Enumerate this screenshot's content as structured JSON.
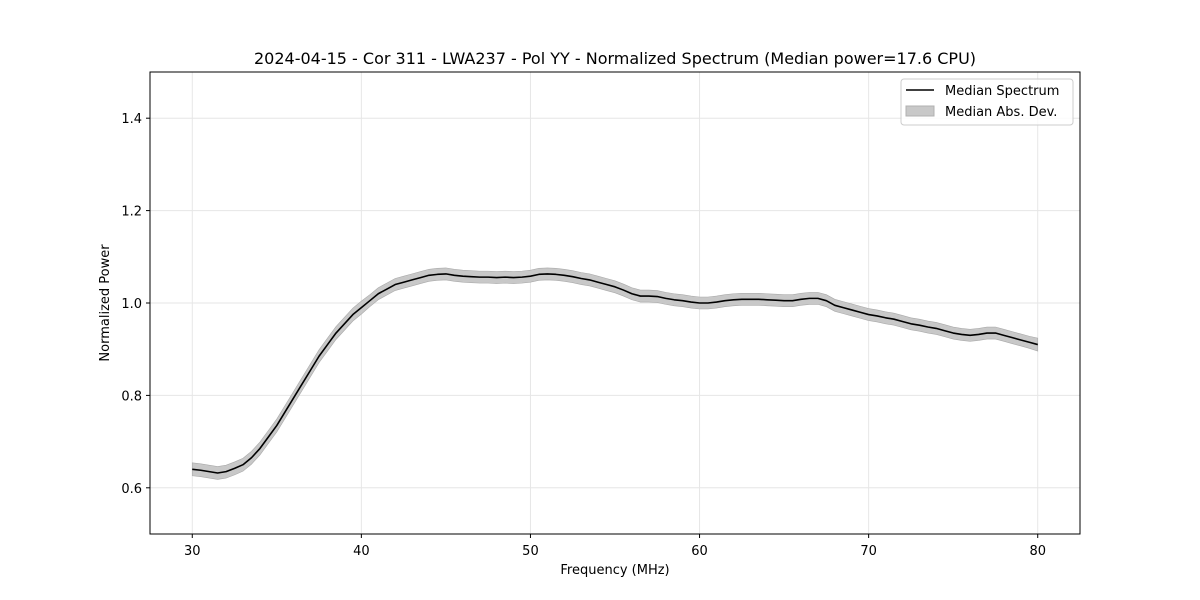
{
  "chart_data": {
    "type": "line",
    "title": "2024-04-15 - Cor 311 - LWA237 - Pol YY - Normalized Spectrum (Median power=17.6 CPU)",
    "xlabel": "Frequency (MHz)",
    "ylabel": "Normalized Power",
    "xlim": [
      27.5,
      82.5
    ],
    "ylim": [
      0.5,
      1.5
    ],
    "xticks": [
      30,
      40,
      50,
      60,
      70,
      80
    ],
    "yticks": [
      0.6,
      0.8,
      1.0,
      1.2,
      1.4
    ],
    "xtick_labels": [
      "30",
      "40",
      "50",
      "60",
      "70",
      "80"
    ],
    "ytick_labels": [
      "0.6",
      "0.8",
      "1.0",
      "1.2",
      "1.4"
    ],
    "grid": true,
    "legend_position": "top-right",
    "series": [
      {
        "name": "Median Spectrum",
        "color": "#000000",
        "x": [
          30,
          30.5,
          31,
          31.5,
          32,
          32.5,
          33,
          33.5,
          34,
          34.5,
          35,
          35.5,
          36,
          36.5,
          37,
          37.5,
          38,
          38.5,
          39,
          39.5,
          40,
          40.5,
          41,
          41.5,
          42,
          42.5,
          43,
          43.5,
          44,
          44.5,
          45,
          45.5,
          46,
          46.5,
          47,
          47.5,
          48,
          48.5,
          49,
          49.5,
          50,
          50.5,
          51,
          51.5,
          52,
          52.5,
          53,
          53.5,
          54,
          54.5,
          55,
          55.5,
          56,
          56.5,
          57,
          57.5,
          58,
          58.5,
          59,
          59.5,
          60,
          60.5,
          61,
          61.5,
          62,
          62.5,
          63,
          63.5,
          64,
          64.5,
          65,
          65.5,
          66,
          66.5,
          67,
          67.5,
          68,
          68.5,
          69,
          69.5,
          70,
          70.5,
          71,
          71.5,
          72,
          72.5,
          73,
          73.5,
          74,
          74.5,
          75,
          75.5,
          76,
          76.5,
          77,
          77.5,
          78,
          78.5,
          79,
          79.5,
          80
        ],
        "values": [
          0.64,
          0.638,
          0.635,
          0.632,
          0.635,
          0.642,
          0.65,
          0.665,
          0.685,
          0.71,
          0.735,
          0.765,
          0.795,
          0.825,
          0.855,
          0.885,
          0.91,
          0.935,
          0.955,
          0.975,
          0.99,
          1.005,
          1.02,
          1.03,
          1.04,
          1.045,
          1.05,
          1.055,
          1.06,
          1.062,
          1.063,
          1.06,
          1.058,
          1.057,
          1.056,
          1.056,
          1.055,
          1.056,
          1.055,
          1.056,
          1.058,
          1.062,
          1.063,
          1.062,
          1.06,
          1.057,
          1.053,
          1.05,
          1.045,
          1.04,
          1.035,
          1.028,
          1.02,
          1.015,
          1.015,
          1.014,
          1.01,
          1.007,
          1.005,
          1.002,
          1.0,
          1.0,
          1.002,
          1.005,
          1.007,
          1.008,
          1.008,
          1.008,
          1.007,
          1.006,
          1.005,
          1.005,
          1.008,
          1.01,
          1.01,
          1.005,
          0.995,
          0.99,
          0.985,
          0.98,
          0.975,
          0.972,
          0.968,
          0.965,
          0.96,
          0.955,
          0.952,
          0.948,
          0.945,
          0.94,
          0.935,
          0.932,
          0.93,
          0.932,
          0.935,
          0.935,
          0.93,
          0.925,
          0.92,
          0.915,
          0.91
        ]
      }
    ],
    "band": {
      "name": "Median Abs. Dev.",
      "color": "#c8c8c8",
      "half_width": [
        0.014,
        0.014,
        0.014,
        0.014,
        0.014,
        0.014,
        0.014,
        0.014,
        0.014,
        0.014,
        0.014,
        0.014,
        0.014,
        0.014,
        0.014,
        0.014,
        0.014,
        0.014,
        0.014,
        0.014,
        0.014,
        0.013,
        0.013,
        0.013,
        0.013,
        0.013,
        0.013,
        0.013,
        0.013,
        0.013,
        0.013,
        0.013,
        0.013,
        0.013,
        0.013,
        0.013,
        0.013,
        0.013,
        0.013,
        0.013,
        0.013,
        0.013,
        0.013,
        0.013,
        0.013,
        0.013,
        0.013,
        0.013,
        0.013,
        0.013,
        0.013,
        0.013,
        0.013,
        0.013,
        0.013,
        0.013,
        0.013,
        0.013,
        0.013,
        0.013,
        0.013,
        0.013,
        0.013,
        0.013,
        0.013,
        0.013,
        0.013,
        0.013,
        0.013,
        0.013,
        0.013,
        0.013,
        0.013,
        0.013,
        0.013,
        0.013,
        0.013,
        0.013,
        0.013,
        0.013,
        0.013,
        0.013,
        0.013,
        0.013,
        0.013,
        0.013,
        0.013,
        0.013,
        0.013,
        0.013,
        0.013,
        0.013,
        0.013,
        0.013,
        0.013,
        0.013,
        0.013,
        0.013,
        0.013,
        0.013,
        0.014
      ]
    }
  }
}
